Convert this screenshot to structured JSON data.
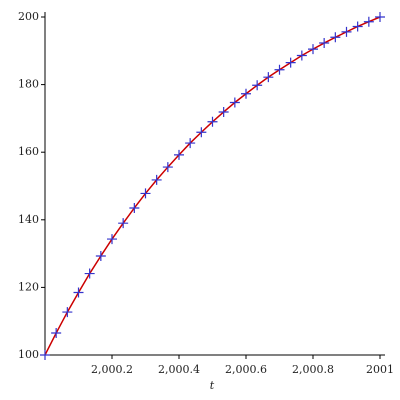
{
  "chart_data": {
    "type": "line",
    "x_label": "t",
    "x": [
      2000,
      2000.0333,
      2000.0667,
      2000.1,
      2000.1333,
      2000.1667,
      2000.2,
      2000.2333,
      2000.2667,
      2000.3,
      2000.3333,
      2000.3667,
      2000.4,
      2000.4333,
      2000.4667,
      2000.5,
      2000.5333,
      2000.5667,
      2000.6,
      2000.6333,
      2000.6667,
      2000.7,
      2000.7333,
      2000.7667,
      2000.8,
      2000.8333,
      2000.8667,
      2000.9,
      2000.9333,
      2000.9667,
      2001
    ],
    "series": [
      {
        "color": "#cc0000",
        "marker": "line",
        "values": [
          100,
          106.5,
          112.7,
          118.5,
          124.1,
          129.3,
          134.3,
          139.0,
          143.5,
          147.8,
          151.8,
          155.6,
          159.2,
          162.7,
          165.9,
          169.0,
          171.9,
          174.7,
          177.3,
          179.8,
          182.2,
          184.4,
          186.5,
          188.6,
          190.5,
          192.3,
          194.0,
          195.6,
          197.2,
          198.6,
          200
        ]
      },
      {
        "color": "#3333cc",
        "marker": "cross",
        "values": [
          100,
          106.5,
          112.7,
          118.5,
          124.1,
          129.3,
          134.3,
          139.0,
          143.5,
          147.8,
          151.8,
          155.6,
          159.2,
          162.7,
          165.9,
          169.0,
          171.9,
          174.7,
          177.3,
          179.8,
          182.2,
          184.4,
          186.5,
          188.6,
          190.5,
          192.3,
          194.0,
          195.6,
          197.2,
          198.6,
          200
        ]
      }
    ],
    "xlim": [
      2000,
      2001
    ],
    "ylim": [
      100,
      200
    ],
    "xticks": [
      {
        "value": 2000.2,
        "label": "2,000.2"
      },
      {
        "value": 2000.4,
        "label": "2,000.4"
      },
      {
        "value": 2000.6,
        "label": "2,000.6"
      },
      {
        "value": 2000.8,
        "label": "2,000.8"
      },
      2001
    ],
    "yticks": [
      100,
      120,
      140,
      160,
      180,
      200
    ]
  }
}
